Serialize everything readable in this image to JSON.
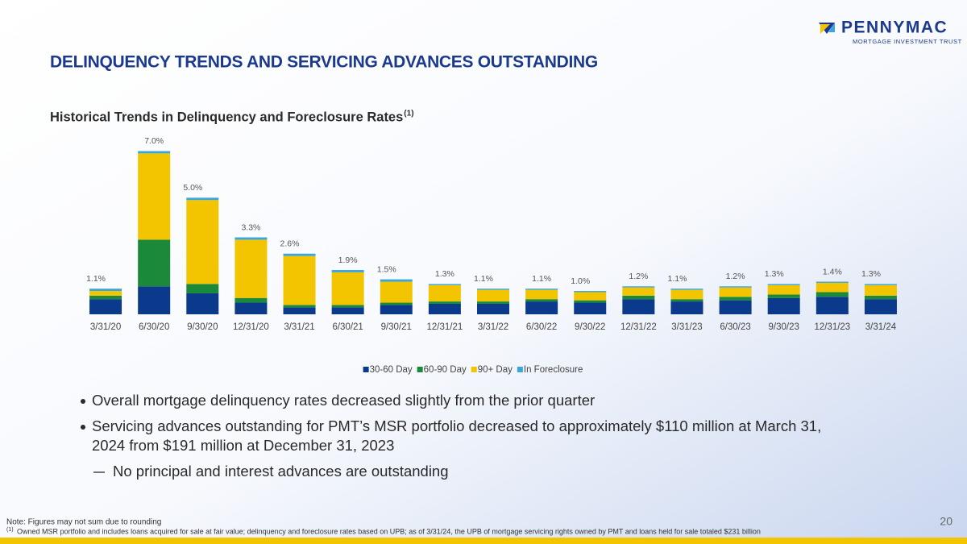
{
  "logo": {
    "name": "PENNYMAC",
    "tagline": "MORTGAGE INVESTMENT TRUST"
  },
  "header": {
    "title": "DELINQUENCY TRENDS AND SERVICING ADVANCES OUTSTANDING"
  },
  "chart_data": {
    "type": "stacked_bar",
    "title": "Historical Trends in Delinquency and Foreclosure Rates",
    "title_note": "(1)",
    "categories": [
      "3/31/20",
      "6/30/20",
      "9/30/20",
      "12/31/20",
      "3/31/21",
      "6/30/21",
      "9/30/21",
      "12/31/21",
      "3/31/22",
      "6/30/22",
      "9/30/22",
      "12/31/22",
      "3/31/23",
      "6/30/23",
      "9/30/23",
      "12/31/23",
      "3/31/24"
    ],
    "series": [
      {
        "name": "30-60 Day",
        "color": "#0b3a8c",
        "values": [
          0.65,
          1.2,
          0.9,
          0.5,
          0.3,
          0.3,
          0.4,
          0.45,
          0.45,
          0.55,
          0.5,
          0.65,
          0.55,
          0.6,
          0.7,
          0.75,
          0.65
        ]
      },
      {
        "name": "60-90 Day",
        "color": "#1a8a3a",
        "values": [
          0.15,
          2.0,
          0.4,
          0.2,
          0.1,
          0.1,
          0.1,
          0.1,
          0.1,
          0.1,
          0.1,
          0.15,
          0.1,
          0.15,
          0.15,
          0.2,
          0.15
        ]
      },
      {
        "name": "90+ Day",
        "color": "#f2c500",
        "values": [
          0.2,
          3.7,
          3.6,
          2.5,
          2.1,
          1.4,
          0.9,
          0.7,
          0.5,
          0.4,
          0.35,
          0.35,
          0.4,
          0.4,
          0.4,
          0.4,
          0.45
        ]
      },
      {
        "name": "In Foreclosure",
        "color": "#3aa6dd",
        "values": [
          0.1,
          0.1,
          0.1,
          0.1,
          0.1,
          0.1,
          0.1,
          0.05,
          0.05,
          0.05,
          0.05,
          0.05,
          0.05,
          0.05,
          0.05,
          0.05,
          0.05
        ]
      }
    ],
    "totals": {
      "values": [
        1.1,
        7.0,
        5.0,
        3.3,
        2.6,
        1.9,
        1.5,
        1.3,
        1.1,
        1.1,
        1.0,
        1.2,
        1.1,
        1.2,
        1.3,
        1.4,
        1.3
      ],
      "value_labels": [
        "1.1%",
        "7.0%",
        "5.0%",
        "3.3%",
        "2.6%",
        "1.9%",
        "1.5%",
        "1.3%",
        "1.1%",
        "1.1%",
        "1.0%",
        "1.2%",
        "1.1%",
        "1.2%",
        "1.3%",
        "1.4%",
        "1.3%"
      ]
    },
    "ylim": [
      0,
      7.5
    ],
    "legend": "bottom"
  },
  "bullets": [
    {
      "lines": [
        "Overall mortgage delinquency rates decreased slightly from the prior quarter"
      ]
    },
    {
      "lines": [
        "Servicing advances outstanding for PMT’s MSR portfolio decreased to approximately $110 million at March 31,",
        "2024 from $191 million at December 31, 2023"
      ]
    }
  ],
  "sub_bullets": [
    "No principal and interest advances are outstanding"
  ],
  "footer": {
    "note": "Note: Figures may not sum due to rounding",
    "footnote_marker": "(1)",
    "footnote": "Owned MSR portfolio and includes loans acquired for sale at fair value; delinquency and foreclosure rates based on UPB; as of 3/31/24, the UPB of mortgage servicing rights owned by PMT and loans held for sale totaled $231 billion",
    "page": "20"
  }
}
